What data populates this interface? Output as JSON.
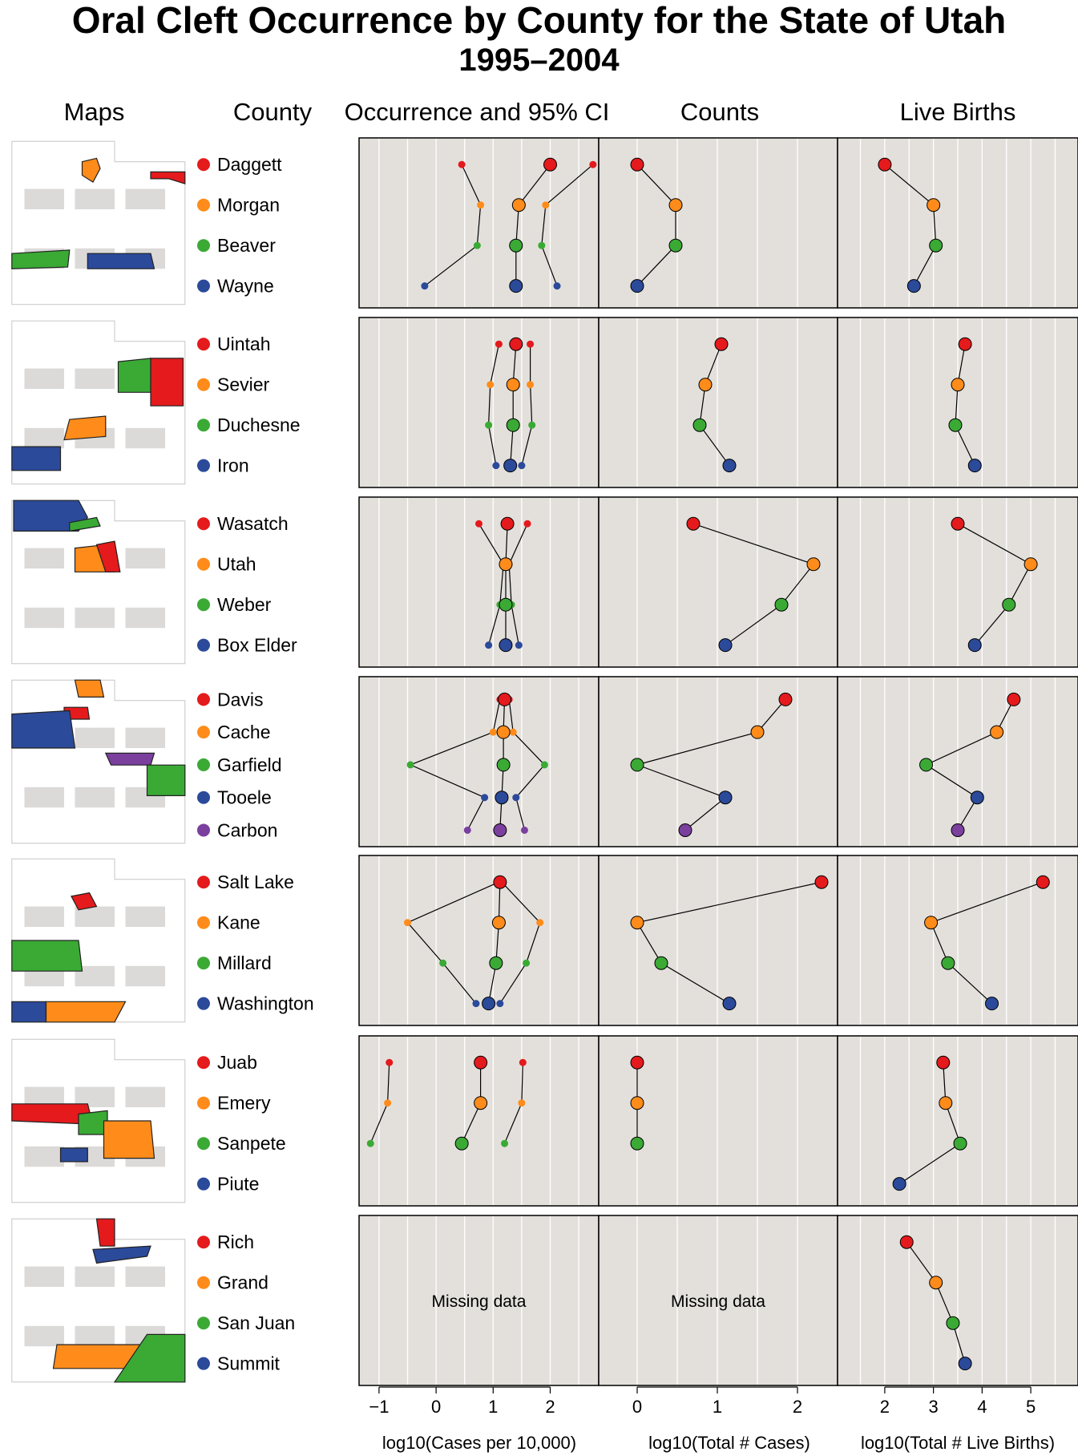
{
  "header": {
    "title": "Oral Cleft Occurrence by County for the State of Utah",
    "subtitle": "1995–2004"
  },
  "columns": {
    "maps": "Maps",
    "county": "County",
    "occurrence": "Occurrence and 95% CI",
    "counts": "Counts",
    "births": "Live Births"
  },
  "missing_label": "Missing data",
  "colors": {
    "red": "#e41a1c",
    "orange": "#ff8c1a",
    "green": "#3aaa35",
    "blue": "#2b4a9a",
    "purple": "#7b3f9e",
    "panel_bg": "#e3e0dc",
    "map_gray": "#dcdad8"
  },
  "chart_data": {
    "type": "scatter",
    "description_axes": {
      "occurrence": {
        "xlabel": "log10(Cases per 10,000)",
        "ticks": [
          -1,
          0,
          1,
          2
        ],
        "xlim": [
          -1.35,
          2.85
        ]
      },
      "counts": {
        "xlabel": "log10(Total # Cases)",
        "ticks": [
          0,
          1,
          2
        ],
        "xlim": [
          -0.48,
          2.5
        ]
      },
      "births": {
        "xlabel": "log10(Total # Live Births)",
        "ticks": [
          2,
          3,
          4,
          5
        ],
        "xlim": [
          1.03,
          5.97
        ]
      }
    },
    "groups": [
      {
        "counties": [
          {
            "name": "Daggett",
            "color": "red",
            "occ": 2.0,
            "lo": 0.45,
            "hi": 2.75,
            "count": 0.0,
            "births": 2.0
          },
          {
            "name": "Morgan",
            "color": "orange",
            "occ": 1.45,
            "lo": 0.78,
            "hi": 1.92,
            "count": 0.48,
            "births": 3.0
          },
          {
            "name": "Beaver",
            "color": "green",
            "occ": 1.4,
            "lo": 0.72,
            "hi": 1.85,
            "count": 0.48,
            "births": 3.05
          },
          {
            "name": "Wayne",
            "color": "blue",
            "occ": 1.4,
            "lo": -0.2,
            "hi": 2.12,
            "count": 0.0,
            "births": 2.6
          }
        ]
      },
      {
        "counties": [
          {
            "name": "Uintah",
            "color": "red",
            "occ": 1.4,
            "lo": 1.1,
            "hi": 1.65,
            "count": 1.05,
            "births": 3.65
          },
          {
            "name": "Sevier",
            "color": "orange",
            "occ": 1.35,
            "lo": 0.95,
            "hi": 1.65,
            "count": 0.85,
            "births": 3.5
          },
          {
            "name": "Duchesne",
            "color": "green",
            "occ": 1.35,
            "lo": 0.92,
            "hi": 1.68,
            "count": 0.78,
            "births": 3.45
          },
          {
            "name": "Iron",
            "color": "blue",
            "occ": 1.3,
            "lo": 1.05,
            "hi": 1.5,
            "count": 1.15,
            "births": 3.85
          }
        ]
      },
      {
        "counties": [
          {
            "name": "Wasatch",
            "color": "red",
            "occ": 1.25,
            "lo": 0.75,
            "hi": 1.6,
            "count": 0.7,
            "births": 3.5
          },
          {
            "name": "Utah",
            "color": "orange",
            "occ": 1.22,
            "lo": 1.18,
            "hi": 1.28,
            "count": 2.2,
            "births": 5.0
          },
          {
            "name": "Weber",
            "color": "green",
            "occ": 1.22,
            "lo": 1.12,
            "hi": 1.32,
            "count": 1.8,
            "births": 4.55
          },
          {
            "name": "Box Elder",
            "color": "blue",
            "occ": 1.22,
            "lo": 0.92,
            "hi": 1.45,
            "count": 1.1,
            "births": 3.85
          }
        ]
      },
      {
        "counties": [
          {
            "name": "Davis",
            "color": "red",
            "occ": 1.2,
            "lo": 1.12,
            "hi": 1.28,
            "count": 1.85,
            "births": 4.65
          },
          {
            "name": "Cache",
            "color": "orange",
            "occ": 1.18,
            "lo": 1.0,
            "hi": 1.35,
            "count": 1.5,
            "births": 4.3
          },
          {
            "name": "Garfield",
            "color": "green",
            "occ": 1.18,
            "lo": -0.45,
            "hi": 1.9,
            "count": 0.0,
            "births": 2.85
          },
          {
            "name": "Tooele",
            "color": "blue",
            "occ": 1.15,
            "lo": 0.85,
            "hi": 1.4,
            "count": 1.1,
            "births": 3.9
          },
          {
            "name": "Carbon",
            "color": "purple",
            "occ": 1.12,
            "lo": 0.55,
            "hi": 1.55,
            "count": 0.6,
            "births": 3.5
          }
        ]
      },
      {
        "counties": [
          {
            "name": "Salt Lake",
            "color": "red",
            "occ": 1.12,
            "lo": 1.1,
            "hi": 1.15,
            "count": 2.3,
            "births": 5.25
          },
          {
            "name": "Kane",
            "color": "orange",
            "occ": 1.1,
            "lo": -0.5,
            "hi": 1.82,
            "count": 0.0,
            "births": 2.95
          },
          {
            "name": "Millard",
            "color": "green",
            "occ": 1.05,
            "lo": 0.12,
            "hi": 1.58,
            "count": 0.3,
            "births": 3.3
          },
          {
            "name": "Washington",
            "color": "blue",
            "occ": 0.92,
            "lo": 0.7,
            "hi": 1.12,
            "count": 1.15,
            "births": 4.2
          }
        ]
      },
      {
        "counties": [
          {
            "name": "Juab",
            "color": "red",
            "occ": 0.78,
            "lo": -0.82,
            "hi": 1.52,
            "count": 0.0,
            "births": 3.2
          },
          {
            "name": "Emery",
            "color": "orange",
            "occ": 0.78,
            "lo": -0.85,
            "hi": 1.5,
            "count": 0.0,
            "births": 3.25
          },
          {
            "name": "Sanpete",
            "color": "green",
            "occ": 0.45,
            "lo": -1.15,
            "hi": 1.2,
            "count": 0.0,
            "births": 3.55
          },
          {
            "name": "Piute",
            "color": "blue",
            "occ": null,
            "lo": null,
            "hi": null,
            "count": null,
            "births": 2.3
          }
        ]
      },
      {
        "missing": true,
        "counties": [
          {
            "name": "Rich",
            "color": "red",
            "occ": null,
            "lo": null,
            "hi": null,
            "count": null,
            "births": 2.45
          },
          {
            "name": "Grand",
            "color": "orange",
            "occ": null,
            "lo": null,
            "hi": null,
            "count": null,
            "births": 3.05
          },
          {
            "name": "San Juan",
            "color": "green",
            "occ": null,
            "lo": null,
            "hi": null,
            "count": null,
            "births": 3.4
          },
          {
            "name": "Summit",
            "color": "blue",
            "occ": null,
            "lo": null,
            "hi": null,
            "count": null,
            "births": 3.65
          }
        ]
      }
    ]
  }
}
